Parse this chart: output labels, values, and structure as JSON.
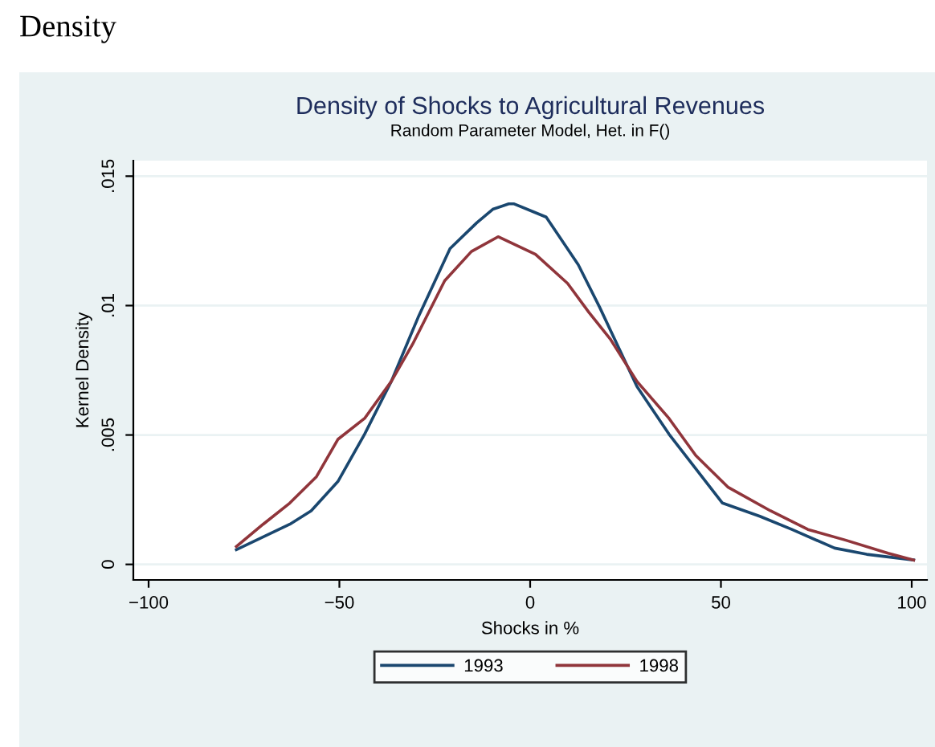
{
  "chart_data": {
    "type": "line",
    "title": "Density of Shocks to Agricultural Revenues",
    "subtitle": "Random Parameter Model, Het. in F()",
    "xlabel": "Shocks in %",
    "ylabel": "Kernel Density",
    "annotations": [
      "Density"
    ],
    "xlim": [
      -104,
      104
    ],
    "ylim": [
      -0.0006,
      0.0156
    ],
    "xticks": [
      {
        "value": -100,
        "label": "−100"
      },
      {
        "value": -50,
        "label": "−50"
      },
      0,
      50,
      100
    ],
    "yticks": [
      0,
      {
        "value": 0.005,
        "label": ".005"
      },
      {
        "value": 0.01,
        "label": ".01"
      },
      {
        "value": 0.015,
        "label": ".015"
      }
    ],
    "grid": "y",
    "legend": "bottom",
    "marker": "none",
    "line_style": "solid",
    "series": [
      {
        "name": "1993",
        "color": "#1a476f",
        "x": [
          -77,
          -63,
          -57.4,
          -50.4,
          -43.4,
          -36.4,
          -29.4,
          -21,
          -14,
          -9.8,
          -5.6,
          -4.2,
          4.2,
          12.6,
          18.2,
          28,
          36.4,
          50.4,
          60.2,
          68.6,
          79.8,
          88.2,
          100.5
        ],
        "values": [
          0.00057,
          0.00155,
          0.00207,
          0.0032,
          0.00503,
          0.00707,
          0.00953,
          0.0122,
          0.0132,
          0.01372,
          0.01393,
          0.01393,
          0.01342,
          0.01158,
          0.00994,
          0.00687,
          0.00503,
          0.00237,
          0.00186,
          0.00135,
          0.00063,
          0.00039,
          0.00017
        ]
      },
      {
        "name": "1998",
        "color": "#90353b",
        "x": [
          -77,
          -70,
          -63,
          -56,
          -50.4,
          -43.4,
          -36.4,
          -30.8,
          -22.4,
          -15.4,
          -8.4,
          1.4,
          9.8,
          15.4,
          21,
          28,
          36.4,
          43.4,
          51.8,
          63,
          72.8,
          82.6,
          93.8,
          100.5
        ],
        "values": [
          0.00069,
          0.00155,
          0.00237,
          0.00339,
          0.00483,
          0.00564,
          0.00707,
          0.00851,
          0.01096,
          0.01209,
          0.01266,
          0.01198,
          0.01086,
          0.00974,
          0.00871,
          0.00707,
          0.00564,
          0.00421,
          0.00299,
          0.00207,
          0.00135,
          0.00094,
          0.00043,
          0.00017
        ]
      }
    ]
  }
}
